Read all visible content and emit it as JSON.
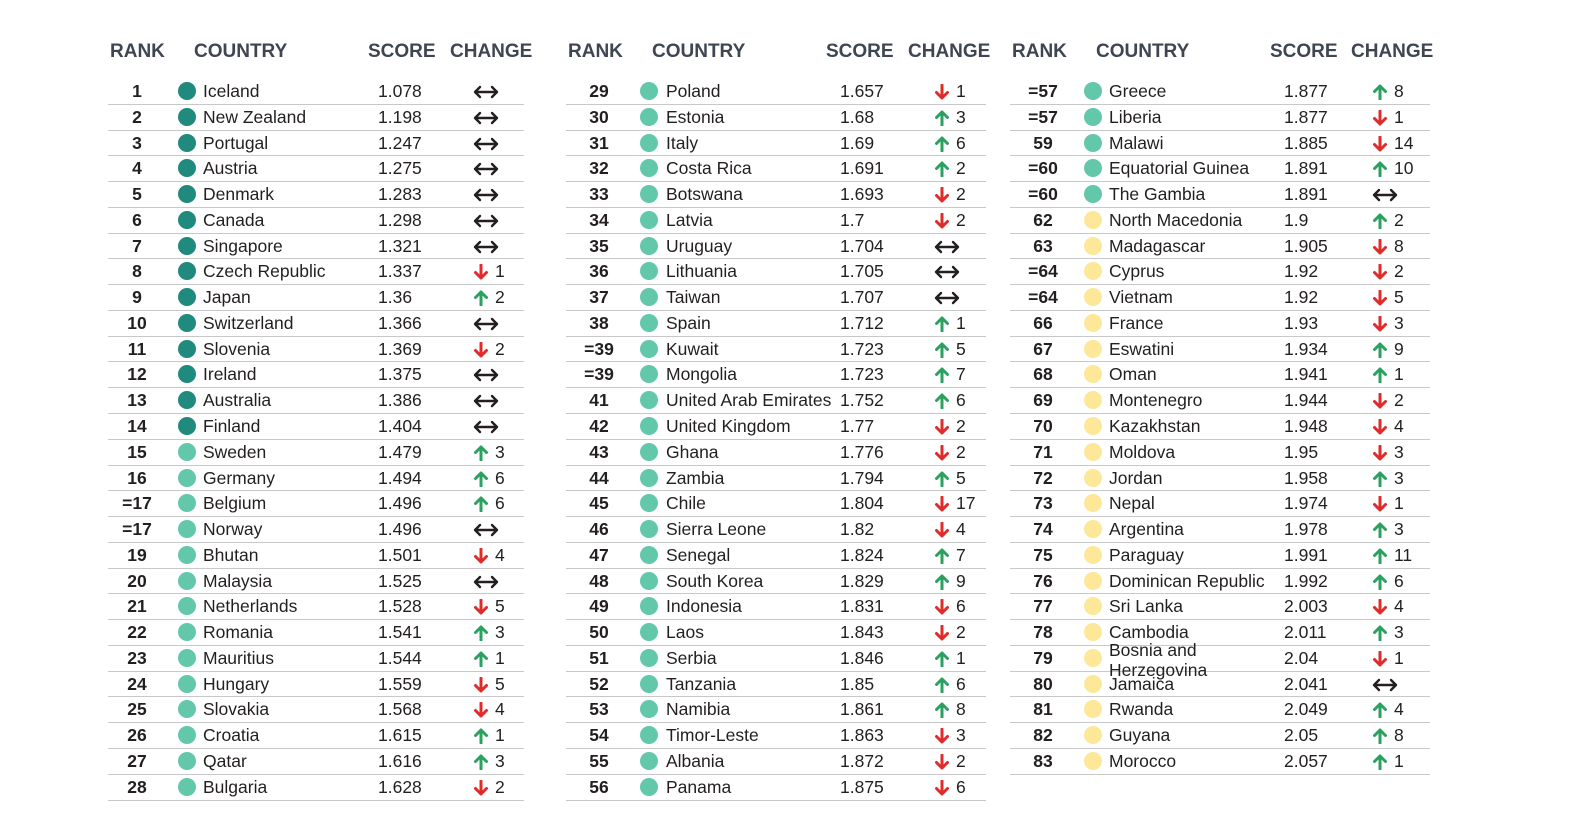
{
  "headers": {
    "rank": "RANK",
    "country": "COUNTRY",
    "score": "SCORE",
    "change": "CHANGE"
  },
  "colors": {
    "dark_teal": "#1f8a7d",
    "light_teal": "#63c7aa",
    "yellow": "#fde89a",
    "up": "#2aa15e",
    "down": "#e02b2b",
    "same": "#231f20"
  },
  "columns": [
    {
      "rows": [
        {
          "rank": "1",
          "country": "Iceland",
          "score": "1.078",
          "dir": "same",
          "change": "",
          "tier": "dark"
        },
        {
          "rank": "2",
          "country": "New Zealand",
          "score": "1.198",
          "dir": "same",
          "change": "",
          "tier": "dark"
        },
        {
          "rank": "3",
          "country": "Portugal",
          "score": "1.247",
          "dir": "same",
          "change": "",
          "tier": "dark"
        },
        {
          "rank": "4",
          "country": "Austria",
          "score": "1.275",
          "dir": "same",
          "change": "",
          "tier": "dark"
        },
        {
          "rank": "5",
          "country": "Denmark",
          "score": "1.283",
          "dir": "same",
          "change": "",
          "tier": "dark"
        },
        {
          "rank": "6",
          "country": "Canada",
          "score": "1.298",
          "dir": "same",
          "change": "",
          "tier": "dark"
        },
        {
          "rank": "7",
          "country": "Singapore",
          "score": "1.321",
          "dir": "same",
          "change": "",
          "tier": "dark"
        },
        {
          "rank": "8",
          "country": "Czech Republic",
          "score": "1.337",
          "dir": "down",
          "change": "1",
          "tier": "dark"
        },
        {
          "rank": "9",
          "country": "Japan",
          "score": "1.36",
          "dir": "up",
          "change": "2",
          "tier": "dark"
        },
        {
          "rank": "10",
          "country": "Switzerland",
          "score": "1.366",
          "dir": "same",
          "change": "",
          "tier": "dark"
        },
        {
          "rank": "11",
          "country": "Slovenia",
          "score": "1.369",
          "dir": "down",
          "change": "2",
          "tier": "dark"
        },
        {
          "rank": "12",
          "country": "Ireland",
          "score": "1.375",
          "dir": "same",
          "change": "",
          "tier": "dark"
        },
        {
          "rank": "13",
          "country": "Australia",
          "score": "1.386",
          "dir": "same",
          "change": "",
          "tier": "dark"
        },
        {
          "rank": "14",
          "country": "Finland",
          "score": "1.404",
          "dir": "same",
          "change": "",
          "tier": "dark"
        },
        {
          "rank": "15",
          "country": "Sweden",
          "score": "1.479",
          "dir": "up",
          "change": "3",
          "tier": "light"
        },
        {
          "rank": "16",
          "country": "Germany",
          "score": "1.494",
          "dir": "up",
          "change": "6",
          "tier": "light"
        },
        {
          "rank": "=17",
          "country": "Belgium",
          "score": "1.496",
          "dir": "up",
          "change": "6",
          "tier": "light"
        },
        {
          "rank": "=17",
          "country": "Norway",
          "score": "1.496",
          "dir": "same",
          "change": "",
          "tier": "light"
        },
        {
          "rank": "19",
          "country": "Bhutan",
          "score": "1.501",
          "dir": "down",
          "change": "4",
          "tier": "light"
        },
        {
          "rank": "20",
          "country": "Malaysia",
          "score": "1.525",
          "dir": "same",
          "change": "",
          "tier": "light"
        },
        {
          "rank": "21",
          "country": "Netherlands",
          "score": "1.528",
          "dir": "down",
          "change": "5",
          "tier": "light"
        },
        {
          "rank": "22",
          "country": "Romania",
          "score": "1.541",
          "dir": "up",
          "change": "3",
          "tier": "light"
        },
        {
          "rank": "23",
          "country": "Mauritius",
          "score": "1.544",
          "dir": "up",
          "change": "1",
          "tier": "light"
        },
        {
          "rank": "24",
          "country": "Hungary",
          "score": "1.559",
          "dir": "down",
          "change": "5",
          "tier": "light"
        },
        {
          "rank": "25",
          "country": "Slovakia",
          "score": "1.568",
          "dir": "down",
          "change": "4",
          "tier": "light"
        },
        {
          "rank": "26",
          "country": "Croatia",
          "score": "1.615",
          "dir": "up",
          "change": "1",
          "tier": "light"
        },
        {
          "rank": "27",
          "country": "Qatar",
          "score": "1.616",
          "dir": "up",
          "change": "3",
          "tier": "light"
        },
        {
          "rank": "28",
          "country": "Bulgaria",
          "score": "1.628",
          "dir": "down",
          "change": "2",
          "tier": "light"
        }
      ]
    },
    {
      "rows": [
        {
          "rank": "29",
          "country": "Poland",
          "score": "1.657",
          "dir": "down",
          "change": "1",
          "tier": "light"
        },
        {
          "rank": "30",
          "country": "Estonia",
          "score": "1.68",
          "dir": "up",
          "change": "3",
          "tier": "light"
        },
        {
          "rank": "31",
          "country": "Italy",
          "score": "1.69",
          "dir": "up",
          "change": "6",
          "tier": "light"
        },
        {
          "rank": "32",
          "country": "Costa Rica",
          "score": "1.691",
          "dir": "up",
          "change": "2",
          "tier": "light"
        },
        {
          "rank": "33",
          "country": "Botswana",
          "score": "1.693",
          "dir": "down",
          "change": "2",
          "tier": "light"
        },
        {
          "rank": "34",
          "country": "Latvia",
          "score": "1.7",
          "dir": "down",
          "change": "2",
          "tier": "light"
        },
        {
          "rank": "35",
          "country": "Uruguay",
          "score": "1.704",
          "dir": "same",
          "change": "",
          "tier": "light"
        },
        {
          "rank": "36",
          "country": "Lithuania",
          "score": "1.705",
          "dir": "same",
          "change": "",
          "tier": "light"
        },
        {
          "rank": "37",
          "country": "Taiwan",
          "score": "1.707",
          "dir": "same",
          "change": "",
          "tier": "light"
        },
        {
          "rank": "38",
          "country": "Spain",
          "score": "1.712",
          "dir": "up",
          "change": "1",
          "tier": "light"
        },
        {
          "rank": "=39",
          "country": "Kuwait",
          "score": "1.723",
          "dir": "up",
          "change": "5",
          "tier": "light"
        },
        {
          "rank": "=39",
          "country": "Mongolia",
          "score": "1.723",
          "dir": "up",
          "change": "7",
          "tier": "light"
        },
        {
          "rank": "41",
          "country": "United Arab Emirates",
          "score": "1.752",
          "dir": "up",
          "change": "6",
          "tier": "light"
        },
        {
          "rank": "42",
          "country": "United Kingdom",
          "score": "1.77",
          "dir": "down",
          "change": "2",
          "tier": "light"
        },
        {
          "rank": "43",
          "country": "Ghana",
          "score": "1.776",
          "dir": "down",
          "change": "2",
          "tier": "light"
        },
        {
          "rank": "44",
          "country": "Zambia",
          "score": "1.794",
          "dir": "up",
          "change": "5",
          "tier": "light"
        },
        {
          "rank": "45",
          "country": "Chile",
          "score": "1.804",
          "dir": "down",
          "change": "17",
          "tier": "light"
        },
        {
          "rank": "46",
          "country": "Sierra Leone",
          "score": "1.82",
          "dir": "down",
          "change": "4",
          "tier": "light"
        },
        {
          "rank": "47",
          "country": "Senegal",
          "score": "1.824",
          "dir": "up",
          "change": "7",
          "tier": "light"
        },
        {
          "rank": "48",
          "country": "South Korea",
          "score": "1.829",
          "dir": "up",
          "change": "9",
          "tier": "light"
        },
        {
          "rank": "49",
          "country": "Indonesia",
          "score": "1.831",
          "dir": "down",
          "change": "6",
          "tier": "light"
        },
        {
          "rank": "50",
          "country": "Laos",
          "score": "1.843",
          "dir": "down",
          "change": "2",
          "tier": "light"
        },
        {
          "rank": "51",
          "country": "Serbia",
          "score": "1.846",
          "dir": "up",
          "change": "1",
          "tier": "light"
        },
        {
          "rank": "52",
          "country": "Tanzania",
          "score": "1.85",
          "dir": "up",
          "change": "6",
          "tier": "light"
        },
        {
          "rank": "53",
          "country": "Namibia",
          "score": "1.861",
          "dir": "up",
          "change": "8",
          "tier": "light"
        },
        {
          "rank": "54",
          "country": "Timor-Leste",
          "score": "1.863",
          "dir": "down",
          "change": "3",
          "tier": "light"
        },
        {
          "rank": "55",
          "country": "Albania",
          "score": "1.872",
          "dir": "down",
          "change": "2",
          "tier": "light"
        },
        {
          "rank": "56",
          "country": "Panama",
          "score": "1.875",
          "dir": "down",
          "change": "6",
          "tier": "light"
        }
      ]
    },
    {
      "rows": [
        {
          "rank": "=57",
          "country": "Greece",
          "score": "1.877",
          "dir": "up",
          "change": "8",
          "tier": "light"
        },
        {
          "rank": "=57",
          "country": "Liberia",
          "score": "1.877",
          "dir": "down",
          "change": "1",
          "tier": "light"
        },
        {
          "rank": "59",
          "country": "Malawi",
          "score": "1.885",
          "dir": "down",
          "change": "14",
          "tier": "light"
        },
        {
          "rank": "=60",
          "country": "Equatorial Guinea",
          "score": "1.891",
          "dir": "up",
          "change": "10",
          "tier": "light"
        },
        {
          "rank": "=60",
          "country": "The Gambia",
          "score": "1.891",
          "dir": "same",
          "change": "",
          "tier": "light"
        },
        {
          "rank": "62",
          "country": "North Macedonia",
          "score": "1.9",
          "dir": "up",
          "change": "2",
          "tier": "yellow"
        },
        {
          "rank": "63",
          "country": "Madagascar",
          "score": "1.905",
          "dir": "down",
          "change": "8",
          "tier": "yellow"
        },
        {
          "rank": "=64",
          "country": "Cyprus",
          "score": "1.92",
          "dir": "down",
          "change": "2",
          "tier": "yellow"
        },
        {
          "rank": "=64",
          "country": "Vietnam",
          "score": "1.92",
          "dir": "down",
          "change": "5",
          "tier": "yellow"
        },
        {
          "rank": "66",
          "country": "France",
          "score": "1.93",
          "dir": "down",
          "change": "3",
          "tier": "yellow"
        },
        {
          "rank": "67",
          "country": "Eswatini",
          "score": "1.934",
          "dir": "up",
          "change": "9",
          "tier": "yellow"
        },
        {
          "rank": "68",
          "country": "Oman",
          "score": "1.941",
          "dir": "up",
          "change": "1",
          "tier": "yellow"
        },
        {
          "rank": "69",
          "country": "Montenegro",
          "score": "1.944",
          "dir": "down",
          "change": "2",
          "tier": "yellow"
        },
        {
          "rank": "70",
          "country": "Kazakhstan",
          "score": "1.948",
          "dir": "down",
          "change": "4",
          "tier": "yellow"
        },
        {
          "rank": "71",
          "country": "Moldova",
          "score": "1.95",
          "dir": "down",
          "change": "3",
          "tier": "yellow"
        },
        {
          "rank": "72",
          "country": "Jordan",
          "score": "1.958",
          "dir": "up",
          "change": "3",
          "tier": "yellow"
        },
        {
          "rank": "73",
          "country": "Nepal",
          "score": "1.974",
          "dir": "down",
          "change": "1",
          "tier": "yellow"
        },
        {
          "rank": "74",
          "country": "Argentina",
          "score": "1.978",
          "dir": "up",
          "change": "3",
          "tier": "yellow"
        },
        {
          "rank": "75",
          "country": "Paraguay",
          "score": "1.991",
          "dir": "up",
          "change": "11",
          "tier": "yellow"
        },
        {
          "rank": "76",
          "country": "Dominican Republic",
          "score": "1.992",
          "dir": "up",
          "change": "6",
          "tier": "yellow"
        },
        {
          "rank": "77",
          "country": "Sri Lanka",
          "score": "2.003",
          "dir": "down",
          "change": "4",
          "tier": "yellow"
        },
        {
          "rank": "78",
          "country": "Cambodia",
          "score": "2.011",
          "dir": "up",
          "change": "3",
          "tier": "yellow"
        },
        {
          "rank": "79",
          "country": "Bosnia and Herzegovina",
          "score": "2.04",
          "dir": "down",
          "change": "1",
          "tier": "yellow",
          "wrap": true
        },
        {
          "rank": "80",
          "country": "Jamaica",
          "score": "2.041",
          "dir": "same",
          "change": "",
          "tier": "yellow"
        },
        {
          "rank": "81",
          "country": "Rwanda",
          "score": "2.049",
          "dir": "up",
          "change": "4",
          "tier": "yellow"
        },
        {
          "rank": "82",
          "country": "Guyana",
          "score": "2.05",
          "dir": "up",
          "change": "8",
          "tier": "yellow"
        },
        {
          "rank": "83",
          "country": "Morocco",
          "score": "2.057",
          "dir": "up",
          "change": "1",
          "tier": "yellow"
        }
      ]
    }
  ]
}
